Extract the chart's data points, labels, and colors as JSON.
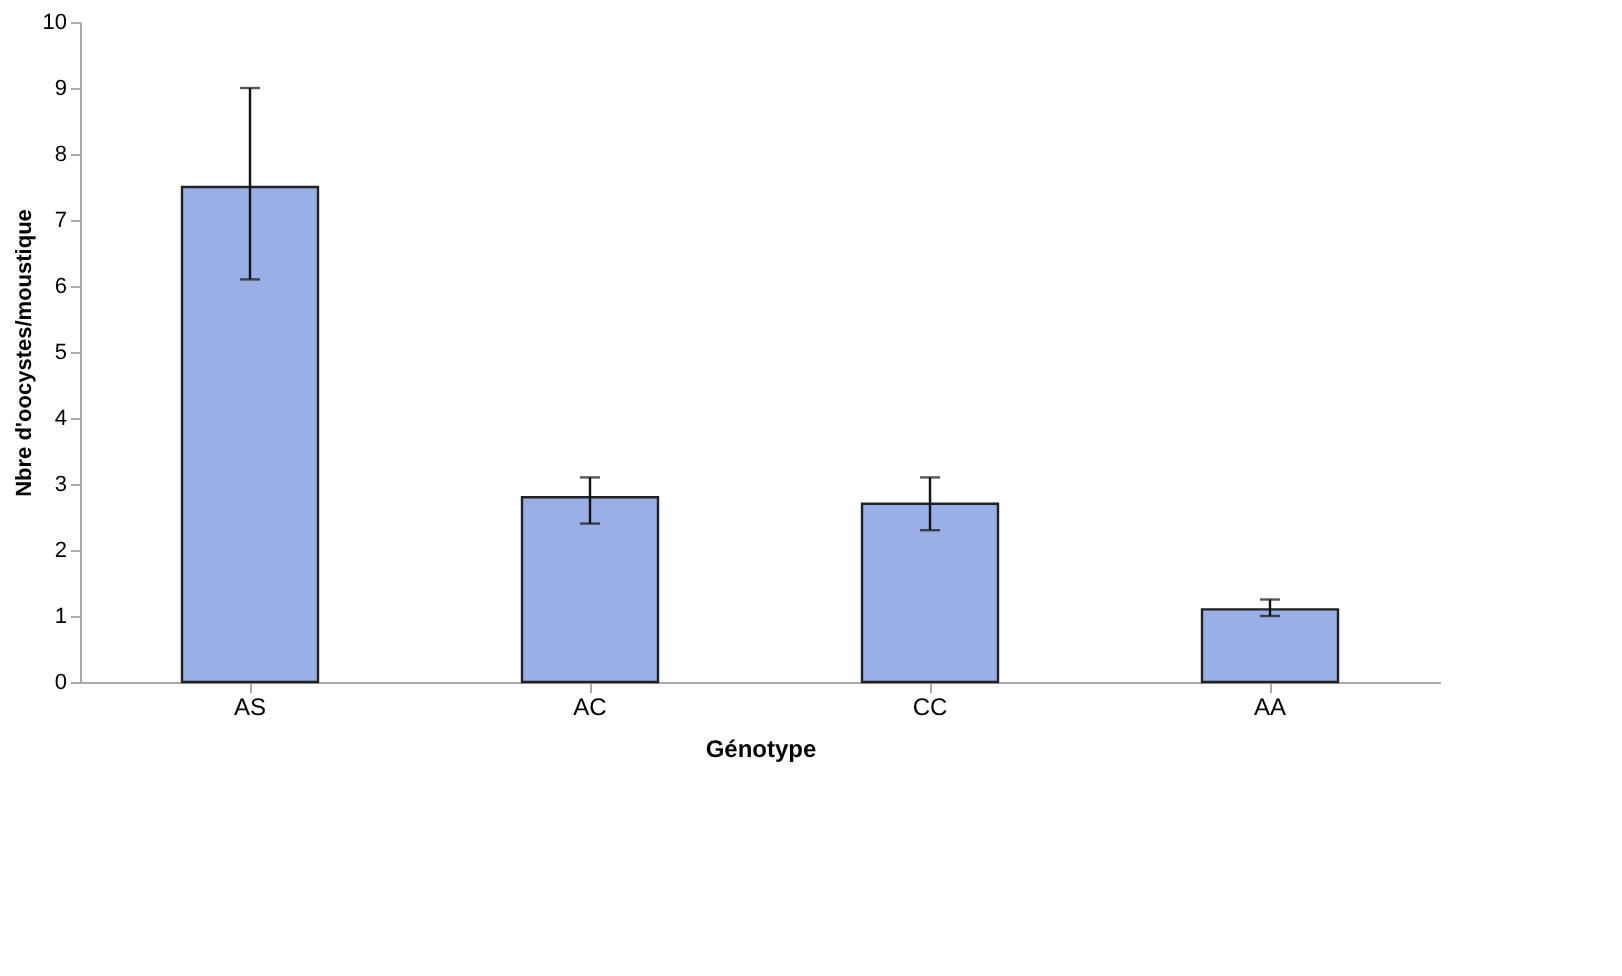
{
  "chart_data": {
    "type": "bar",
    "xlabel": "Génotype",
    "ylabel": "Nbre d'oocystes/moustique",
    "categories": [
      "AS",
      "AC",
      "CC",
      "AA"
    ],
    "values": [
      7.5,
      2.8,
      2.7,
      1.1
    ],
    "errors": [
      [
        6.1,
        9.0
      ],
      [
        2.4,
        3.1
      ],
      [
        2.3,
        3.1
      ],
      [
        1.0,
        1.25
      ]
    ],
    "color": "#9aaee6",
    "ylim": [
      0,
      10
    ],
    "yticks": [
      0,
      1,
      2,
      3,
      4,
      5,
      6,
      7,
      8,
      9,
      10
    ],
    "grid": false
  }
}
